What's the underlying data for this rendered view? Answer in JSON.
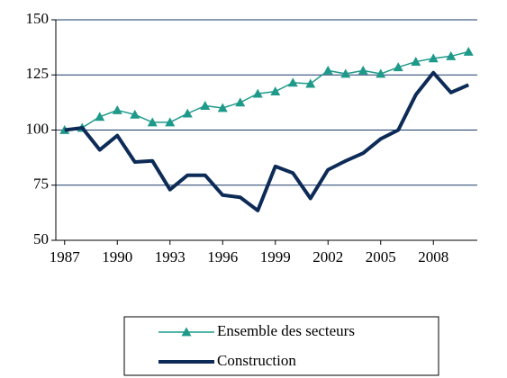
{
  "chart_data": {
    "type": "line",
    "x": [
      1987,
      1988,
      1989,
      1990,
      1991,
      1992,
      1993,
      1994,
      1995,
      1996,
      1997,
      1998,
      1999,
      2000,
      2001,
      2002,
      2003,
      2004,
      2005,
      2006,
      2007,
      2008,
      2009,
      2010
    ],
    "series": [
      {
        "name": "Ensemble des secteurs",
        "color": "#1f9a8a",
        "marker": "triangle",
        "values": [
          100,
          101,
          106,
          109,
          107,
          103.5,
          103.5,
          107.5,
          111,
          110,
          112.5,
          116.5,
          117.5,
          121.5,
          121,
          127,
          125.5,
          127,
          125.5,
          128.5,
          131,
          132.5,
          133.5,
          135.5
        ]
      },
      {
        "name": "Construction",
        "color": "#0d2b57",
        "marker": "none",
        "values": [
          100,
          101,
          91,
          97.5,
          85.5,
          86,
          73,
          79.5,
          79.5,
          70.5,
          69.5,
          63.5,
          83.5,
          80.5,
          69,
          82,
          86,
          89.5,
          96,
          100,
          116,
          126,
          117,
          120.5
        ]
      }
    ],
    "xlim": [
      1986.5,
      2010.5
    ],
    "xticks": [
      1987,
      1990,
      1993,
      1996,
      1999,
      2002,
      2005,
      2008
    ],
    "ylim": [
      50,
      150
    ],
    "yticks": [
      50,
      75,
      100,
      125,
      150
    ],
    "grid": true,
    "legend": "bottom"
  }
}
